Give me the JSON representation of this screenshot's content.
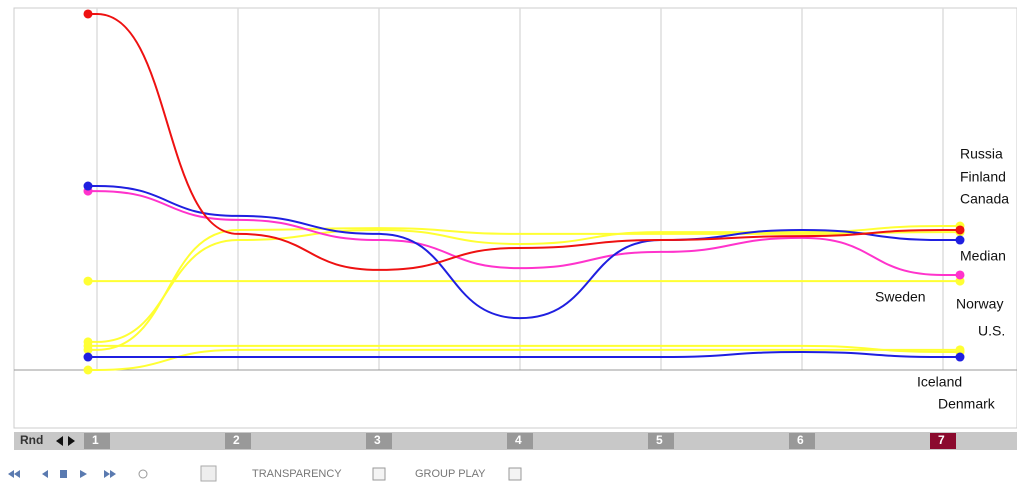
{
  "chart_data": {
    "type": "line",
    "categories": [
      "1",
      "2",
      "3",
      "4",
      "5",
      "6",
      "7"
    ],
    "selected_round_index": 6,
    "ylim": [
      0,
      100
    ],
    "series": [
      {
        "color": "#ffff33",
        "values": [
          24.7,
          24.7,
          24.7,
          24.7,
          24.7,
          24.7,
          24.7
        ]
      },
      {
        "color": "#ffff33",
        "values": [
          7.8,
          36.1,
          38.9,
          35,
          38.3,
          38.3,
          40
        ]
      },
      {
        "color": "#ffff33",
        "values": [
          5.6,
          38.9,
          39.4,
          37.8,
          37.8,
          37.8,
          38.3
        ]
      },
      {
        "color": "#ffff33",
        "values": [
          6.7,
          6.7,
          6.7,
          6.7,
          6.7,
          6.7,
          5
        ]
      },
      {
        "color": "#ffff33",
        "values": [
          0,
          5.6,
          5.6,
          5.6,
          5.6,
          5.6,
          5.6
        ]
      },
      {
        "color": "#1f1fe0",
        "values": [
          3.6,
          3.6,
          3.6,
          3.6,
          3.6,
          5,
          3.6
        ]
      },
      {
        "color": "#ff33cc",
        "values": [
          49.7,
          41.7,
          36.1,
          28.3,
          32.8,
          36.7,
          26.4
        ]
      },
      {
        "color": "#1f1fe0",
        "values": [
          51.1,
          42.8,
          37.8,
          14.4,
          36.1,
          38.9,
          36.1
        ]
      },
      {
        "color": "#ee1111",
        "values": [
          98.9,
          37.8,
          27.8,
          33.9,
          36.1,
          37.2,
          38.9
        ]
      }
    ],
    "labels": [
      "Russia",
      "Finland",
      "Canada",
      "Median",
      "Sweden",
      "Norway",
      "U.S.",
      "Iceland",
      "Denmark"
    ],
    "round_label": "Rnd"
  },
  "controls": {
    "transparency": "TRANSPARENCY",
    "group_play": "GROUP PLAY"
  }
}
